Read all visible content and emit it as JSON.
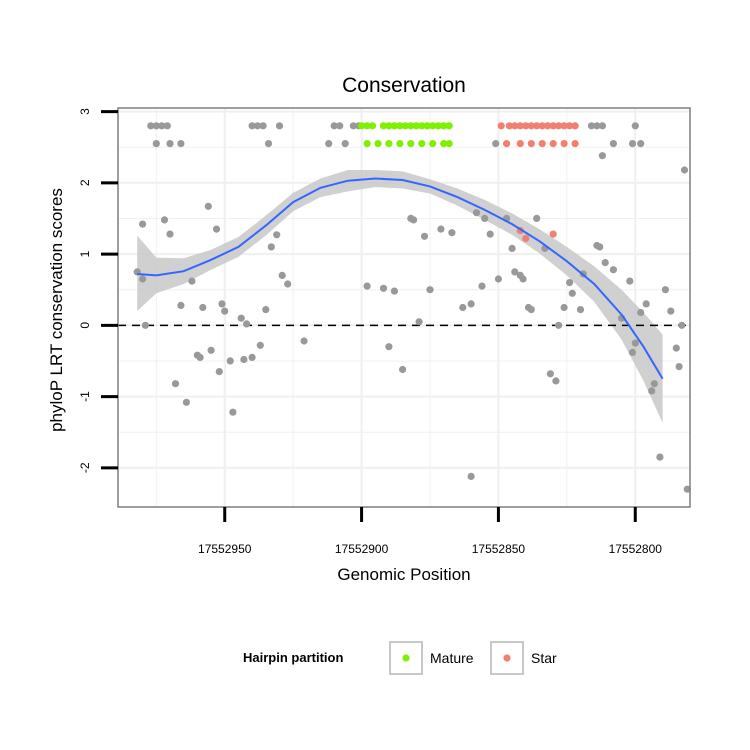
{
  "chart_data": {
    "type": "scatter",
    "title": "Conservation",
    "xlabel": "Genomic Position",
    "ylabel": "phyloP LRT conservation scores",
    "x_reversed": true,
    "xlim": [
      17552989,
      17552780
    ],
    "ylim": [
      -2.55,
      3.05
    ],
    "x_ticks": [
      17552950,
      17552900,
      17552850,
      17552800
    ],
    "x_tick_labels": [
      "17552950",
      "17552900",
      "17552850",
      "17552800"
    ],
    "y_ticks": [
      -2,
      -1,
      0,
      1,
      2,
      3
    ],
    "y_tick_labels": [
      "-2",
      "-1",
      "0",
      "1",
      "2",
      "3"
    ],
    "reference_line": {
      "y": 0,
      "style": "dashed"
    },
    "colors": {
      "Other": "#999999",
      "Mature": "#7ff000",
      "Star": "#f08070",
      "smooth_line": "#3366ff",
      "ribbon": "#c8c8c8",
      "grid": "#f0f0f0",
      "panel_border": "#7f7f7f"
    },
    "legend": {
      "title": "Hairpin partition",
      "position": "bottom",
      "entries": [
        {
          "label": "Mature",
          "group": "Mature"
        },
        {
          "label": "Star",
          "group": "Star"
        }
      ]
    },
    "smooth": {
      "x": [
        17552982,
        17552975,
        17552965,
        17552955,
        17552945,
        17552935,
        17552925,
        17552915,
        17552905,
        17552895,
        17552885,
        17552875,
        17552865,
        17552855,
        17552845,
        17552835,
        17552825,
        17552815,
        17552805,
        17552797,
        17552790
      ],
      "y": [
        0.72,
        0.7,
        0.76,
        0.92,
        1.1,
        1.4,
        1.73,
        1.93,
        2.03,
        2.06,
        2.04,
        1.95,
        1.8,
        1.62,
        1.42,
        1.18,
        0.9,
        0.58,
        0.15,
        -0.3,
        -0.75
      ],
      "lower": [
        0.2,
        0.45,
        0.58,
        0.78,
        0.96,
        1.26,
        1.6,
        1.8,
        1.88,
        1.94,
        1.92,
        1.85,
        1.68,
        1.48,
        1.27,
        1.01,
        0.7,
        0.33,
        -0.2,
        -0.78,
        -1.37
      ],
      "upper": [
        1.26,
        0.95,
        0.94,
        1.06,
        1.24,
        1.54,
        1.86,
        2.06,
        2.18,
        2.18,
        2.16,
        2.05,
        1.92,
        1.76,
        1.57,
        1.35,
        1.1,
        0.83,
        0.5,
        0.18,
        -0.13
      ]
    },
    "series": [
      {
        "name": "Mature",
        "points": [
          [
            17552900,
            2.8
          ],
          [
            17552898,
            2.55
          ],
          [
            17552898,
            2.8
          ],
          [
            17552896,
            2.8
          ],
          [
            17552894,
            2.55
          ],
          [
            17552892,
            2.8
          ],
          [
            17552890,
            2.55
          ],
          [
            17552890,
            2.8
          ],
          [
            17552888,
            2.8
          ],
          [
            17552886,
            2.55
          ],
          [
            17552886,
            2.8
          ],
          [
            17552884,
            2.8
          ],
          [
            17552882,
            2.55
          ],
          [
            17552882,
            2.8
          ],
          [
            17552880,
            2.8
          ],
          [
            17552878,
            2.55
          ],
          [
            17552878,
            2.8
          ],
          [
            17552876,
            2.8
          ],
          [
            17552874,
            2.55
          ],
          [
            17552874,
            2.8
          ],
          [
            17552872,
            2.8
          ],
          [
            17552870,
            2.55
          ],
          [
            17552870,
            2.8
          ],
          [
            17552868,
            2.55
          ],
          [
            17552868,
            2.8
          ]
        ]
      },
      {
        "name": "Star",
        "points": [
          [
            17552849,
            2.8
          ],
          [
            17552847,
            2.55
          ],
          [
            17552846,
            2.8
          ],
          [
            17552844,
            2.8
          ],
          [
            17552842,
            2.55
          ],
          [
            17552842,
            2.8
          ],
          [
            17552840,
            2.8
          ],
          [
            17552838,
            2.55
          ],
          [
            17552838,
            2.8
          ],
          [
            17552836,
            2.8
          ],
          [
            17552834,
            2.55
          ],
          [
            17552834,
            2.8
          ],
          [
            17552832,
            2.8
          ],
          [
            17552830,
            2.55
          ],
          [
            17552830,
            2.8
          ],
          [
            17552828,
            2.8
          ],
          [
            17552826,
            2.55
          ],
          [
            17552826,
            2.8
          ],
          [
            17552824,
            2.8
          ],
          [
            17552822,
            2.55
          ],
          [
            17552822,
            2.8
          ],
          [
            17552842,
            1.33
          ],
          [
            17552840,
            1.22
          ],
          [
            17552830,
            1.28
          ]
        ]
      },
      {
        "name": "Other",
        "points": [
          [
            17552977,
            2.8
          ],
          [
            17552975,
            2.55
          ],
          [
            17552975,
            2.8
          ],
          [
            17552973,
            2.8
          ],
          [
            17552971,
            2.8
          ],
          [
            17552970,
            2.55
          ],
          [
            17552966,
            2.55
          ],
          [
            17552912,
            2.55
          ],
          [
            17552910,
            2.8
          ],
          [
            17552908,
            2.8
          ],
          [
            17552906,
            2.55
          ],
          [
            17552903,
            2.8
          ],
          [
            17552901,
            2.8
          ],
          [
            17552851,
            2.55
          ],
          [
            17552816,
            2.8
          ],
          [
            17552814,
            2.8
          ],
          [
            17552812,
            2.8
          ],
          [
            17552808,
            2.55
          ],
          [
            17552801,
            2.55
          ],
          [
            17552800,
            2.8
          ],
          [
            17552798,
            2.55
          ],
          [
            17552940,
            2.8
          ],
          [
            17552938,
            2.8
          ],
          [
            17552936,
            2.8
          ],
          [
            17552934,
            2.55
          ],
          [
            17552930,
            2.8
          ],
          [
            17552982,
            0.75
          ],
          [
            17552980,
            1.42
          ],
          [
            17552980,
            0.65
          ],
          [
            17552979,
            0.0
          ],
          [
            17552972,
            1.48
          ],
          [
            17552970,
            1.28
          ],
          [
            17552968,
            -0.82
          ],
          [
            17552966,
            0.28
          ],
          [
            17552964,
            -1.08
          ],
          [
            17552962,
            0.62
          ],
          [
            17552960,
            -0.42
          ],
          [
            17552959,
            -0.45
          ],
          [
            17552958,
            0.25
          ],
          [
            17552956,
            1.67
          ],
          [
            17552955,
            -0.35
          ],
          [
            17552953,
            1.35
          ],
          [
            17552952,
            -0.65
          ],
          [
            17552951,
            0.3
          ],
          [
            17552950,
            0.2
          ],
          [
            17552948,
            -0.5
          ],
          [
            17552947,
            -1.22
          ],
          [
            17552944,
            0.1
          ],
          [
            17552943,
            -0.48
          ],
          [
            17552942,
            0.02
          ],
          [
            17552940,
            -0.45
          ],
          [
            17552937,
            -0.28
          ],
          [
            17552935,
            0.22
          ],
          [
            17552933,
            1.1
          ],
          [
            17552931,
            1.27
          ],
          [
            17552929,
            0.7
          ],
          [
            17552927,
            0.58
          ],
          [
            17552921,
            -0.22
          ],
          [
            17552898,
            0.55
          ],
          [
            17552892,
            0.52
          ],
          [
            17552890,
            -0.3
          ],
          [
            17552888,
            0.48
          ],
          [
            17552885,
            -0.62
          ],
          [
            17552882,
            1.5
          ],
          [
            17552881,
            1.48
          ],
          [
            17552879,
            0.05
          ],
          [
            17552877,
            1.25
          ],
          [
            17552875,
            0.5
          ],
          [
            17552871,
            1.35
          ],
          [
            17552867,
            1.3
          ],
          [
            17552863,
            0.25
          ],
          [
            17552860,
            0.3
          ],
          [
            17552858,
            1.58
          ],
          [
            17552856,
            0.55
          ],
          [
            17552855,
            1.5
          ],
          [
            17552853,
            1.28
          ],
          [
            17552850,
            0.65
          ],
          [
            17552847,
            1.5
          ],
          [
            17552845,
            1.08
          ],
          [
            17552844,
            0.75
          ],
          [
            17552842,
            0.7
          ],
          [
            17552841,
            0.65
          ],
          [
            17552839,
            0.25
          ],
          [
            17552838,
            0.22
          ],
          [
            17552836,
            1.5
          ],
          [
            17552833,
            1.08
          ],
          [
            17552831,
            -0.68
          ],
          [
            17552829,
            -0.78
          ],
          [
            17552828,
            0.0
          ],
          [
            17552826,
            0.25
          ],
          [
            17552824,
            0.6
          ],
          [
            17552823,
            0.45
          ],
          [
            17552820,
            0.22
          ],
          [
            17552819,
            0.72
          ],
          [
            17552814,
            1.12
          ],
          [
            17552813,
            1.1
          ],
          [
            17552812,
            2.38
          ],
          [
            17552811,
            0.88
          ],
          [
            17552808,
            0.78
          ],
          [
            17552805,
            0.1
          ],
          [
            17552802,
            0.62
          ],
          [
            17552801,
            -0.38
          ],
          [
            17552800,
            -0.25
          ],
          [
            17552798,
            0.18
          ],
          [
            17552796,
            0.3
          ],
          [
            17552794,
            -0.92
          ],
          [
            17552793,
            -0.82
          ],
          [
            17552791,
            -1.85
          ],
          [
            17552789,
            0.5
          ],
          [
            17552787,
            0.2
          ],
          [
            17552785,
            -0.32
          ],
          [
            17552784,
            -0.58
          ],
          [
            17552783,
            0.0
          ],
          [
            17552782,
            2.18
          ],
          [
            17552781,
            -2.3
          ],
          [
            17552860,
            -2.12
          ]
        ]
      }
    ]
  }
}
